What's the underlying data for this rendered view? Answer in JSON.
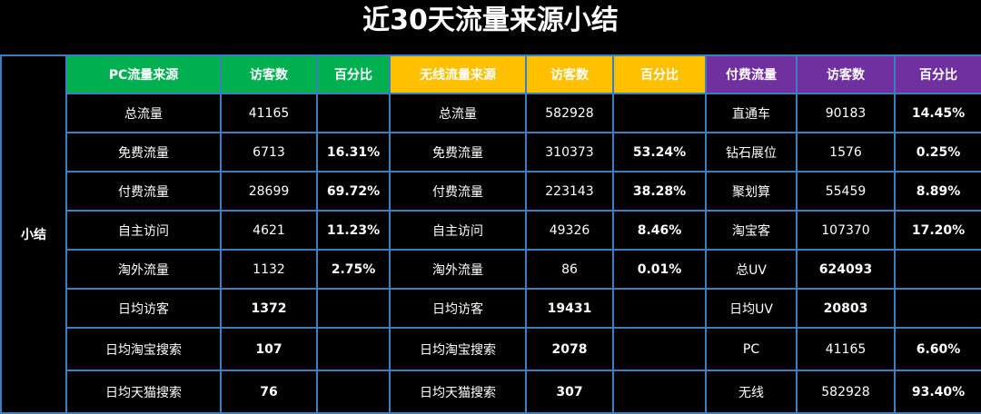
{
  "title": "近30天流量来源小结",
  "side_label": "小结",
  "headers": [
    "PC流量来源",
    "访客数",
    "百分比",
    "无线流量来源",
    "访客数",
    "百分比",
    "付费流量",
    "访客数",
    "百分比"
  ],
  "rows": [
    [
      "总流量",
      "41165",
      "",
      "总流量",
      "582928",
      "",
      "直通车",
      "90183",
      "14.45%"
    ],
    [
      "免费流量",
      "6713",
      "16.31%",
      "免费流量",
      "310373",
      "53.24%",
      "钻石展位",
      "1576",
      "0.25%"
    ],
    [
      "付费流量",
      "28699",
      "69.72%",
      "付费流量",
      "223143",
      "38.28%",
      "聚划算",
      "55459",
      "8.89%"
    ],
    [
      "自主访问",
      "4621",
      "11.23%",
      "自主访问",
      "49326",
      "8.46%",
      "淘宝客",
      "107370",
      "17.20%"
    ],
    [
      "淘外流量",
      "1132",
      "2.75%",
      "淘外流量",
      "86",
      "0.01%",
      "总UV",
      "624093",
      ""
    ],
    [
      "日均访客",
      "1372",
      "",
      "日均访客",
      "19431",
      "",
      "日均UV",
      "20803",
      ""
    ],
    [
      "日均淘宝搜索",
      "107",
      "",
      "日均淘宝搜索",
      "2078",
      "",
      "PC",
      "41165",
      "6.60%"
    ],
    [
      "日均天猫搜索",
      "76",
      "",
      "日均天猫搜索",
      "307",
      "",
      "无线",
      "582928",
      "93.40%"
    ]
  ],
  "colors": {
    "pc_header": "#00b050",
    "mobile_header": "#ffc000",
    "paid_header": "#7030a0",
    "grid": "#3a7fc0"
  }
}
